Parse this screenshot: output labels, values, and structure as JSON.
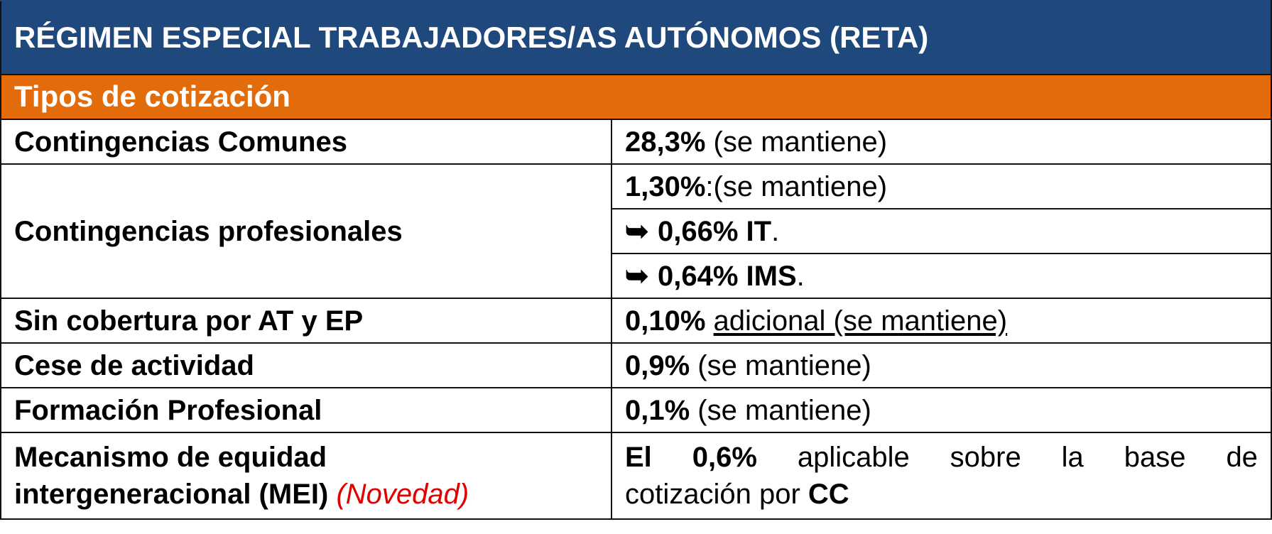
{
  "header": {
    "title": "RÉGIMEN ESPECIAL TRABAJADORES/AS AUTÓNOMOS (RETA)",
    "section": "Tipos de cotización"
  },
  "colors": {
    "title_bg": "#1f497d",
    "section_bg": "#e36c0a",
    "novelty_text": "#e00000",
    "border": "#111111"
  },
  "rows": {
    "comunes": {
      "label": "Contingencias Comunes",
      "value_bold": "28,3%",
      "value_rest": " (se mantiene)"
    },
    "profesionales": {
      "label": "Contingencias profesionales",
      "line1_bold": "1,30%",
      "line1_rest": ":(se mantiene)",
      "arrow_icon": "right-hook-arrow-icon",
      "arrow_glyph": "➥",
      "line2_bold": "0,66% IT",
      "line2_rest": ".",
      "line3_bold": "0,64% IMS",
      "line3_rest": "."
    },
    "sin_cobertura": {
      "label": "Sin cobertura por AT y EP",
      "value_bold": "0,10%",
      "value_space": " ",
      "value_underlined": "adicional (se mantiene)"
    },
    "cese": {
      "label": "Cese de actividad",
      "value_bold": "0,9%",
      "value_rest": " (se mantiene)"
    },
    "formacion": {
      "label": "Formación Profesional",
      "value_bold": "0,1%",
      "value_rest": " (se mantiene)"
    },
    "mei": {
      "label_line1": "Mecanismo de equidad",
      "label_line2": "intergeneracional (MEI)",
      "novelty": "(Novedad)",
      "words_line1": [
        "El",
        "0,6%",
        "aplicable",
        "sobre",
        "la",
        "base",
        "de"
      ],
      "line2_text": "cotización por ",
      "line2_bold": "CC"
    }
  }
}
